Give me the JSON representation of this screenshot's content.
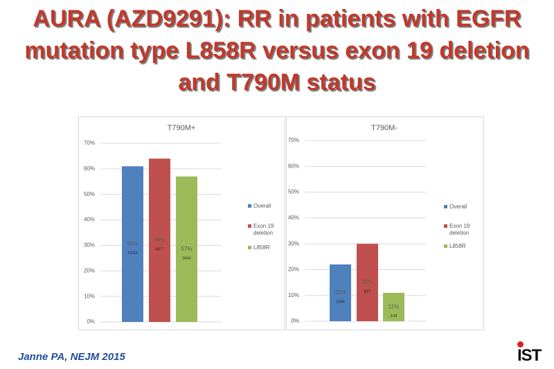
{
  "slide_title": "AURA (AZD9291): RR in patients with EGFR mutation type L858R versus exon 19 deletion and T790M status",
  "footer": "Janne PA, NEJM 2015",
  "logo": "IST",
  "chart_data": [
    {
      "type": "bar",
      "title": "T790M+",
      "ylim": [
        0,
        70
      ],
      "yticks": [
        {
          "value": 0,
          "label": "0%"
        },
        {
          "value": 10,
          "label": "10%"
        },
        {
          "value": 20,
          "label": "20%"
        },
        {
          "value": 30,
          "label": "30%"
        },
        {
          "value": 40,
          "label": "40%"
        },
        {
          "value": 50,
          "label": "50%"
        },
        {
          "value": 60,
          "label": "60%"
        },
        {
          "value": 70,
          "label": "70%"
        }
      ],
      "grid": true,
      "series": [
        {
          "name": "Overall",
          "color": "#4f81bd",
          "values": [
            61
          ],
          "value_labels": [
            "61%"
          ],
          "counts": [
            "71/116"
          ]
        },
        {
          "name": "Exon 19 deletion",
          "color": "#c0504d",
          "values": [
            64
          ],
          "value_labels": [
            "64%"
          ],
          "counts": [
            "49/77"
          ]
        },
        {
          "name": "L858R",
          "color": "#9bbb59",
          "values": [
            57
          ],
          "value_labels": [
            "57%"
          ],
          "counts": [
            "24/42"
          ]
        }
      ]
    },
    {
      "type": "bar",
      "title": "T790M-",
      "ylim": [
        0,
        70
      ],
      "yticks": [
        {
          "value": 0,
          "label": "0%"
        },
        {
          "value": 10,
          "label": "10%"
        },
        {
          "value": 20,
          "label": "20%"
        },
        {
          "value": 30,
          "label": "30%"
        },
        {
          "value": 40,
          "label": "40%"
        },
        {
          "value": 50,
          "label": "50%"
        },
        {
          "value": 60,
          "label": "60%"
        },
        {
          "value": 70,
          "label": "70%"
        }
      ],
      "grid": true,
      "series": [
        {
          "name": "Overall",
          "color": "#4f81bd",
          "values": [
            22
          ],
          "value_labels": [
            "22%"
          ],
          "counts": [
            "10/46"
          ]
        },
        {
          "name": "Exon 19 deletion",
          "color": "#c0504d",
          "values": [
            30
          ],
          "value_labels": [
            "30%"
          ],
          "counts": [
            "8/27"
          ]
        },
        {
          "name": "L858R",
          "color": "#9bbb59",
          "values": [
            11
          ],
          "value_labels": [
            "11%"
          ],
          "counts": [
            "2/19"
          ]
        }
      ]
    }
  ]
}
